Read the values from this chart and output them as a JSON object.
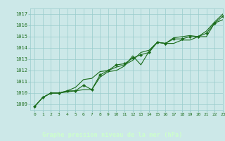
{
  "title": "Graphe pression niveau de la mer (hPa)",
  "bg_color": "#cce8e8",
  "grid_color": "#99cccc",
  "line_color": "#1a6b1a",
  "marker_color": "#1a6b1a",
  "label_bg_color": "#336633",
  "label_text_color": "#ccffcc",
  "xlim": [
    -0.5,
    23
  ],
  "ylim": [
    1008.5,
    1017.5
  ],
  "yticks": [
    1009,
    1010,
    1011,
    1012,
    1013,
    1014,
    1015,
    1016,
    1017
  ],
  "xticks": [
    0,
    1,
    2,
    3,
    4,
    5,
    6,
    7,
    8,
    9,
    10,
    11,
    12,
    13,
    14,
    15,
    16,
    17,
    18,
    19,
    20,
    21,
    22,
    23
  ],
  "series1": [
    1008.8,
    1009.6,
    1010.0,
    1010.0,
    1010.1,
    1010.2,
    1010.3,
    1010.3,
    1011.4,
    1011.9,
    1012.0,
    1012.4,
    1013.3,
    1012.5,
    1013.7,
    1014.5,
    1014.4,
    1014.4,
    1014.7,
    1014.7,
    1015.0,
    1015.0,
    1016.2,
    1016.5
  ],
  "series2": [
    1008.8,
    1009.6,
    1010.0,
    1010.0,
    1010.2,
    1010.2,
    1010.7,
    1010.3,
    1011.6,
    1012.0,
    1012.5,
    1012.6,
    1013.1,
    1013.4,
    1013.6,
    1014.5,
    1014.4,
    1014.8,
    1014.8,
    1015.0,
    1015.0,
    1015.3,
    1016.2,
    1016.8
  ],
  "series3": [
    1008.8,
    1009.6,
    1010.0,
    1010.0,
    1010.2,
    1010.5,
    1011.2,
    1011.3,
    1011.9,
    1012.0,
    1012.3,
    1012.5,
    1012.9,
    1013.6,
    1013.8,
    1014.5,
    1014.4,
    1014.9,
    1015.0,
    1015.1,
    1015.0,
    1015.5,
    1016.3,
    1017.0
  ]
}
